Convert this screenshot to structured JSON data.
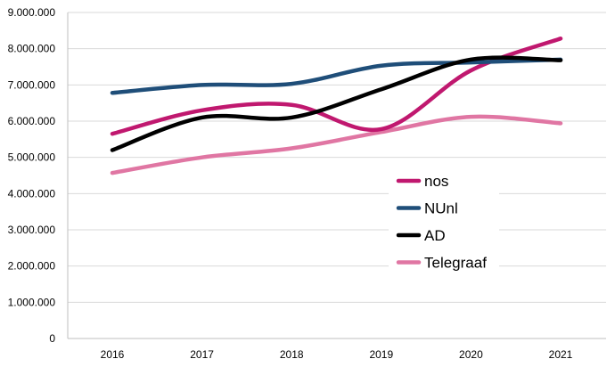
{
  "chart_data": {
    "type": "line",
    "title": "",
    "xlabel": "",
    "ylabel": "",
    "x": [
      "2016",
      "2017",
      "2018",
      "2019",
      "2020",
      "2021"
    ],
    "ylim": [
      0,
      9000000
    ],
    "yticks": [
      0,
      1000000,
      2000000,
      3000000,
      4000000,
      5000000,
      6000000,
      7000000,
      8000000,
      9000000
    ],
    "ytick_labels": [
      "0",
      "1.000.000",
      "2.000.000",
      "3.000.000",
      "4.000.000",
      "5.000.000",
      "6.000.000",
      "7.000.000",
      "8.000.000",
      "9.000.000"
    ],
    "grid": "horizontal",
    "legend_position": "lower-right",
    "smooth": true,
    "series": [
      {
        "name": "nos",
        "color": "#c0186f",
        "values": [
          5650000,
          6300000,
          6450000,
          5780000,
          7400000,
          8280000
        ]
      },
      {
        "name": "NUnl",
        "color": "#1f4e79",
        "values": [
          6780000,
          7000000,
          7030000,
          7530000,
          7620000,
          7700000
        ]
      },
      {
        "name": "AD",
        "color": "#000000",
        "values": [
          5200000,
          6100000,
          6100000,
          6880000,
          7700000,
          7680000
        ]
      },
      {
        "name": "Telegraaf",
        "color": "#e076a3",
        "values": [
          4570000,
          5000000,
          5250000,
          5700000,
          6120000,
          5940000
        ]
      }
    ]
  }
}
